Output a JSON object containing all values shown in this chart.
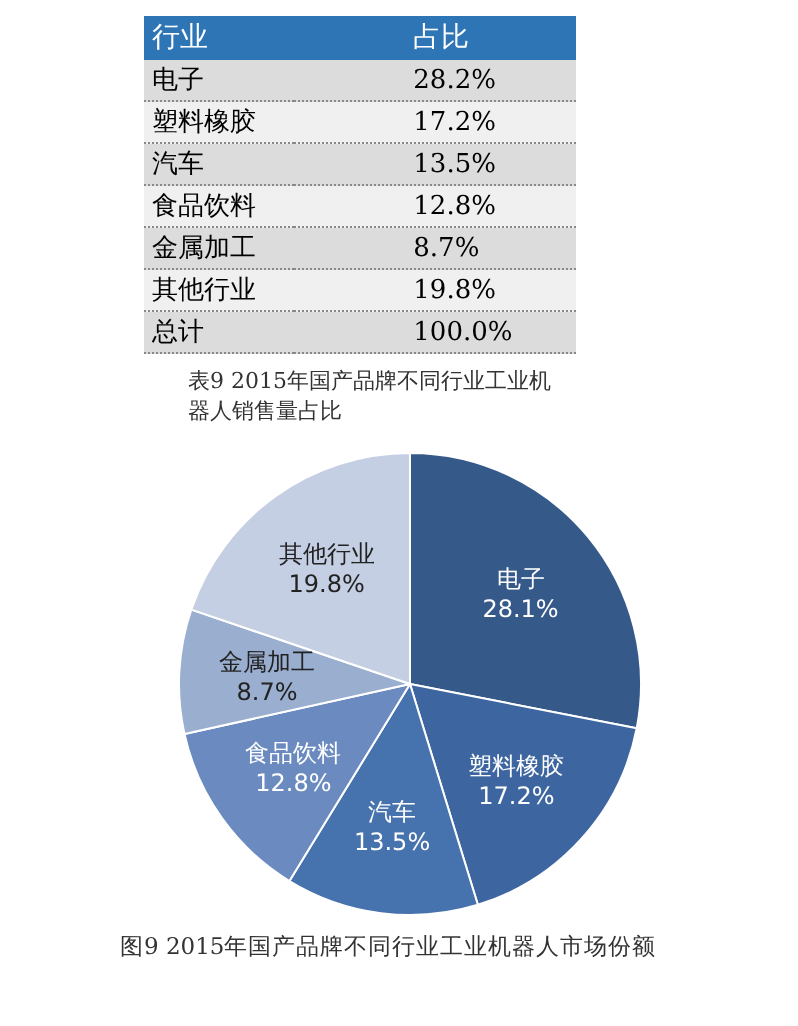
{
  "chart_data": [
    {
      "type": "other",
      "title": "表9 2015年国产品牌不同行业工业机器人销售量占比",
      "xlabel": "行业",
      "ylabel": "占比",
      "categories": [
        "电子",
        "塑料橡胶",
        "汽车",
        "食品饮料",
        "金属加工",
        "其他行业",
        "总计"
      ],
      "value_labels": [
        "28.2%",
        "17.2%",
        "13.5%",
        "12.8%",
        "8.7%",
        "19.8%",
        "100.0%"
      ]
    },
    {
      "type": "pie",
      "title": "图9 2015年国产品牌不同行业工业机器人市场份额",
      "categories": [
        "电子",
        "塑料橡胶",
        "汽车",
        "食品饮料",
        "金属加工",
        "其他行业"
      ],
      "values": [
        28.1,
        17.2,
        13.5,
        12.8,
        8.7,
        19.8
      ],
      "value_labels": [
        "28.1%",
        "17.2%",
        "13.5%",
        "12.8%",
        "8.7%",
        "19.8%"
      ],
      "colors": [
        "#355a8a",
        "#3d66a0",
        "#4672ad",
        "#6b8bc0",
        "#9aaed0",
        "#c4cfe4"
      ],
      "legend": false
    }
  ]
}
